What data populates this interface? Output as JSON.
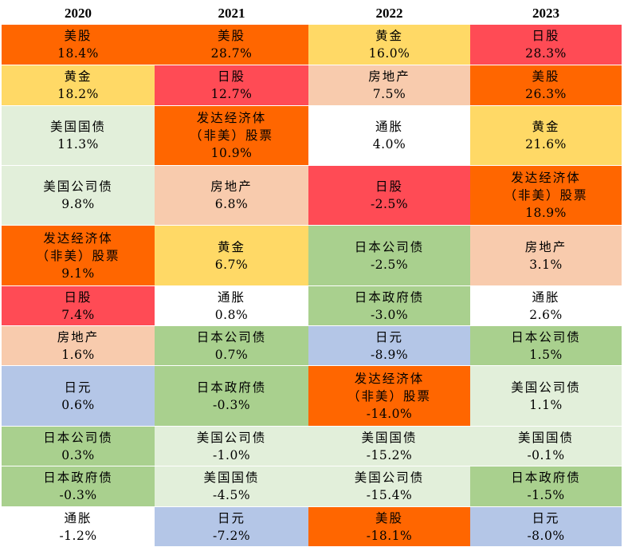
{
  "chart_data": {
    "type": "table",
    "title": "",
    "columns": [
      "2020",
      "2021",
      "2022",
      "2023"
    ],
    "colors": {
      "美股": "#ff6600",
      "日股": "#ff4b55",
      "黄金": "#ffd966",
      "房地产": "#f8cbad",
      "发达经济体（非美）股票": "#ff6600",
      "美国国债": "#e2efda",
      "美国公司债": "#e2efda",
      "日本公司债": "#a9d08e",
      "日本政府债": "#a9d08e",
      "日元": "#b4c6e7",
      "通胀": "#ffffff"
    },
    "rows": [
      [
        {
          "asset": "美股",
          "lines": [
            "美股"
          ],
          "value": "18.4%"
        },
        {
          "asset": "美股",
          "lines": [
            "美股"
          ],
          "value": "28.7%"
        },
        {
          "asset": "黄金",
          "lines": [
            "黄金"
          ],
          "value": "16.0%"
        },
        {
          "asset": "日股",
          "lines": [
            "日股"
          ],
          "value": "28.3%"
        }
      ],
      [
        {
          "asset": "黄金",
          "lines": [
            "黄金"
          ],
          "value": "18.2%"
        },
        {
          "asset": "日股",
          "lines": [
            "日股"
          ],
          "value": "12.7%"
        },
        {
          "asset": "房地产",
          "lines": [
            "房地产"
          ],
          "value": "7.5%"
        },
        {
          "asset": "美股",
          "lines": [
            "美股"
          ],
          "value": "26.3%"
        }
      ],
      [
        {
          "asset": "美国国债",
          "lines": [
            "美国国债"
          ],
          "value": "11.3%"
        },
        {
          "asset": "发达经济体（非美）股票",
          "lines": [
            "发达经济体",
            "（非美）股票"
          ],
          "value": "10.9%"
        },
        {
          "asset": "通胀",
          "lines": [
            "通胀"
          ],
          "value": "4.0%"
        },
        {
          "asset": "黄金",
          "lines": [
            "黄金"
          ],
          "value": "21.6%"
        }
      ],
      [
        {
          "asset": "美国公司债",
          "lines": [
            "美国公司债"
          ],
          "value": "9.8%"
        },
        {
          "asset": "房地产",
          "lines": [
            "房地产"
          ],
          "value": "6.8%"
        },
        {
          "asset": "日股",
          "lines": [
            "日股"
          ],
          "value": "-2.5%"
        },
        {
          "asset": "发达经济体（非美）股票",
          "lines": [
            "发达经济体",
            "（非美）股票"
          ],
          "value": "18.9%"
        }
      ],
      [
        {
          "asset": "发达经济体（非美）股票",
          "lines": [
            "发达经济体",
            "（非美）股票"
          ],
          "value": "9.1%"
        },
        {
          "asset": "黄金",
          "lines": [
            "黄金"
          ],
          "value": "6.7%"
        },
        {
          "asset": "日本公司债",
          "lines": [
            "日本公司债"
          ],
          "value": "-2.5%"
        },
        {
          "asset": "房地产",
          "lines": [
            "房地产"
          ],
          "value": "3.1%"
        }
      ],
      [
        {
          "asset": "日股",
          "lines": [
            "日股"
          ],
          "value": "7.4%"
        },
        {
          "asset": "通胀",
          "lines": [
            "通胀"
          ],
          "value": "0.8%"
        },
        {
          "asset": "日本政府债",
          "lines": [
            "日本政府债"
          ],
          "value": "-3.0%"
        },
        {
          "asset": "通胀",
          "lines": [
            "通胀"
          ],
          "value": "2.6%"
        }
      ],
      [
        {
          "asset": "房地产",
          "lines": [
            "房地产"
          ],
          "value": "1.6%"
        },
        {
          "asset": "日本公司债",
          "lines": [
            "日本公司债"
          ],
          "value": "0.7%"
        },
        {
          "asset": "日元",
          "lines": [
            "日元"
          ],
          "value": "-8.9%"
        },
        {
          "asset": "日本公司债",
          "lines": [
            "日本公司债"
          ],
          "value": "1.5%"
        }
      ],
      [
        {
          "asset": "日元",
          "lines": [
            "日元"
          ],
          "value": "0.6%"
        },
        {
          "asset": "日本政府债",
          "lines": [
            "日本政府债"
          ],
          "value": "-0.3%"
        },
        {
          "asset": "发达经济体（非美）股票",
          "lines": [
            "发达经济体",
            "（非美）股票"
          ],
          "value": "-14.0%"
        },
        {
          "asset": "美国公司债",
          "lines": [
            "美国公司债"
          ],
          "value": "1.1%"
        }
      ],
      [
        {
          "asset": "日本公司债",
          "lines": [
            "日本公司债"
          ],
          "value": "0.3%"
        },
        {
          "asset": "美国公司债",
          "lines": [
            "美国公司债"
          ],
          "value": "-1.0%"
        },
        {
          "asset": "美国国债",
          "lines": [
            "美国国债"
          ],
          "value": "-15.2%"
        },
        {
          "asset": "美国国债",
          "lines": [
            "美国国债"
          ],
          "value": "-0.1%"
        }
      ],
      [
        {
          "asset": "日本政府债",
          "lines": [
            "日本政府债"
          ],
          "value": "-0.3%"
        },
        {
          "asset": "美国国债",
          "lines": [
            "美国国债"
          ],
          "value": "-4.5%"
        },
        {
          "asset": "美国公司债",
          "lines": [
            "美国公司债"
          ],
          "value": "-15.4%"
        },
        {
          "asset": "日本政府债",
          "lines": [
            "日本政府债"
          ],
          "value": "-1.5%"
        }
      ],
      [
        {
          "asset": "通胀",
          "lines": [
            "通胀"
          ],
          "value": "-1.2%"
        },
        {
          "asset": "日元",
          "lines": [
            "日元"
          ],
          "value": "-7.2%"
        },
        {
          "asset": "美股",
          "lines": [
            "美股"
          ],
          "value": "-18.1%"
        },
        {
          "asset": "日元",
          "lines": [
            "日元"
          ],
          "value": "-8.0%"
        }
      ]
    ]
  }
}
